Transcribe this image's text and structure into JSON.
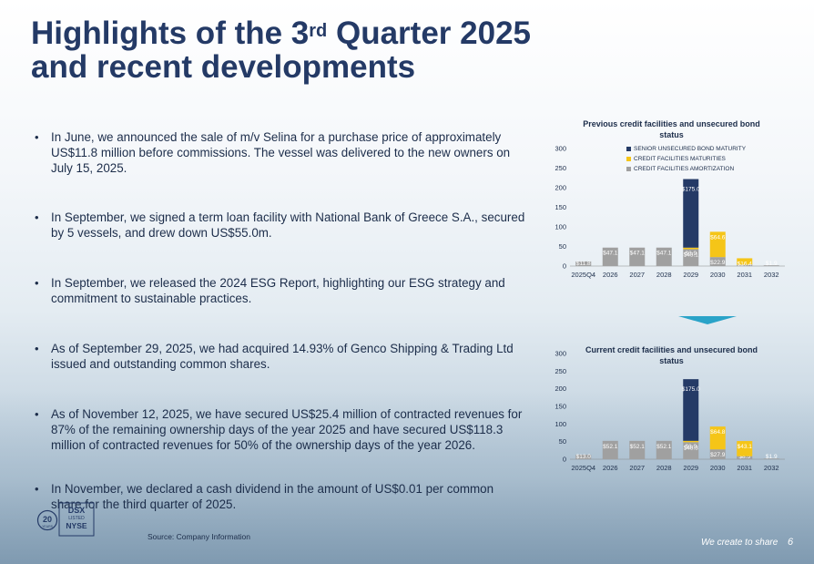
{
  "title": {
    "line1_pre": "Highlights of the 3",
    "line1_sup": "rd",
    "line1_post": " Quarter 2025",
    "line2": "and recent developments"
  },
  "bullets": [
    "In June, we announced the sale of m/v Selina for a purchase price of approximately US$11.8 million before commissions. The vessel was delivered to the new owners on July 15, 2025.",
    "In September, we signed a term loan facility with National Bank of Greece S.A., secured by 5 vessels, and drew down US$55.0m.",
    "In September, we released the 2024 ESG Report, highlighting our ESG strategy and commitment to sustainable practices.",
    "As of September 29, 2025, we had acquired 14.93% of Genco Shipping & Trading Ltd issued and outstanding common shares.",
    "As of November 12, 2025, we have secured US$25.4 million of contracted revenues for 87% of the remaining ownership days of the year 2025 and have secured US$118.3 million of contracted revenues for 50% of the ownership days of the year 2026.",
    "In November, we declared a cash dividend in the amount of US$0.01 per common share for the third quarter of 2025."
  ],
  "legend": {
    "senior": "SENIOR UNSECURED BOND MATURITY",
    "maturities": "CREDIT FACILITIES MATURITIES",
    "amortization": "CREDIT FACILITIES AMORTIZATION"
  },
  "colors": {
    "senior": "#243a66",
    "maturities": "#f5c518",
    "amortization": "#a0a0a0",
    "arrow": "#2aa3c8"
  },
  "chart_data": [
    {
      "type": "bar",
      "stacked": true,
      "title": "Previous credit facilities and unsecured bond status",
      "categories": [
        "2025Q4",
        "2026",
        "2027",
        "2028",
        "2029",
        "2030",
        "2031",
        "2032"
      ],
      "ylim": [
        0,
        300
      ],
      "yticks": [
        0,
        50,
        100,
        150,
        200,
        250,
        300
      ],
      "series": [
        {
          "name": "CREDIT FACILITIES AMORTIZATION",
          "values": [
            11.8,
            47.1,
            47.1,
            47.1,
            43.1,
            22.9,
            3.5,
            1.9
          ]
        },
        {
          "name": "CREDIT FACILITIES MATURITIES",
          "values": [
            0,
            0,
            0,
            0,
            3.9,
            64.6,
            16.4,
            0
          ]
        },
        {
          "name": "SENIOR UNSECURED BOND MATURITY",
          "values": [
            0,
            0,
            0,
            0,
            175.0,
            0,
            0,
            0
          ]
        }
      ],
      "labels": [
        [
          "$11.8",
          "",
          ""
        ],
        [
          "$47.1",
          "",
          ""
        ],
        [
          "$47.1",
          "",
          ""
        ],
        [
          "$47.1",
          "",
          ""
        ],
        [
          "$43.1",
          "$3.9",
          "$175.0"
        ],
        [
          "$22.9",
          "$64.6",
          ""
        ],
        [
          "$3.5",
          "$16.4",
          ""
        ],
        [
          "$1.9",
          "",
          ""
        ]
      ]
    },
    {
      "type": "bar",
      "stacked": true,
      "title": "Current credit facilities and unsecured bond status",
      "categories": [
        "2025Q4",
        "2026",
        "2027",
        "2028",
        "2029",
        "2030",
        "2031",
        "2032"
      ],
      "ylim": [
        0,
        300
      ],
      "yticks": [
        0,
        50,
        100,
        150,
        200,
        250,
        300
      ],
      "series": [
        {
          "name": "CREDIT FACILITIES AMORTIZATION",
          "values": [
            13.0,
            52.1,
            52.1,
            52.1,
            48.3,
            27.9,
            8.5,
            1.9
          ]
        },
        {
          "name": "CREDIT FACILITIES MATURITIES",
          "values": [
            0,
            0,
            0,
            0,
            3.9,
            64.8,
            43.1,
            0
          ]
        },
        {
          "name": "SENIOR UNSECURED BOND MATURITY",
          "values": [
            0,
            0,
            0,
            0,
            175.0,
            0,
            0,
            0
          ]
        }
      ],
      "labels": [
        [
          "$13.0",
          "",
          ""
        ],
        [
          "$52.1",
          "",
          ""
        ],
        [
          "$52.1",
          "",
          ""
        ],
        [
          "$52.1",
          "",
          ""
        ],
        [
          "$48.3",
          "$3.9",
          "$175.0"
        ],
        [
          "$27.9",
          "$64.8",
          ""
        ],
        [
          "$8.5",
          "$43.1",
          ""
        ],
        [
          "$1.9",
          "",
          ""
        ]
      ]
    }
  ],
  "logo": {
    "years": "20",
    "years_label": "YEARS",
    "exchange": "DSX",
    "listed": "LISTED",
    "market": "NYSE"
  },
  "footer": {
    "source": "Source: Company Information",
    "tagline": "We create to share",
    "page": "6"
  }
}
